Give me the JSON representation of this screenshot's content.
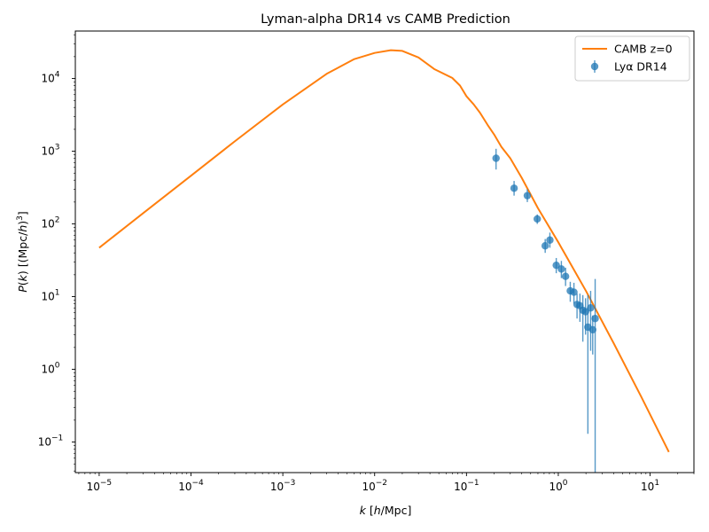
{
  "chart_data": {
    "type": "scatter",
    "title": "Lyman-alpha DR14 vs CAMB Prediction",
    "xlabel": "k [h/Mpc]",
    "ylabel": "P(k) [(Mpc/h)³]",
    "xscale": "log",
    "yscale": "log",
    "xlim": [
      5.5e-06,
      30
    ],
    "ylim": [
      0.038,
      45000
    ],
    "grid": false,
    "legend_position": "top-right",
    "x_ticks": [
      {
        "mant": "10",
        "exp": "−5",
        "value": 1e-05
      },
      {
        "mant": "10",
        "exp": "−4",
        "value": 0.0001
      },
      {
        "mant": "10",
        "exp": "−3",
        "value": 0.001
      },
      {
        "mant": "10",
        "exp": "−2",
        "value": 0.01
      },
      {
        "mant": "10",
        "exp": "−1",
        "value": 0.1
      },
      {
        "mant": "10",
        "exp": "0",
        "value": 1
      },
      {
        "mant": "10",
        "exp": "1",
        "value": 10
      }
    ],
    "y_ticks": [
      {
        "mant": "10",
        "exp": "−1",
        "value": 0.1
      },
      {
        "mant": "10",
        "exp": "0",
        "value": 1
      },
      {
        "mant": "10",
        "exp": "1",
        "value": 10
      },
      {
        "mant": "10",
        "exp": "2",
        "value": 100
      },
      {
        "mant": "10",
        "exp": "3",
        "value": 1000
      },
      {
        "mant": "10",
        "exp": "4",
        "value": 10000
      }
    ],
    "series": [
      {
        "name": "CAMB z=0",
        "kind": "line",
        "color": "#ff7f0e",
        "x": [
          1e-05,
          3e-05,
          0.0001,
          0.0003,
          0.001,
          0.003,
          0.006,
          0.01,
          0.015,
          0.02,
          0.03,
          0.045,
          0.07,
          0.085,
          0.1,
          0.12,
          0.14,
          0.17,
          0.2,
          0.24,
          0.3,
          0.4,
          0.6,
          1.0,
          2.0,
          4.0,
          8.0,
          16.0
        ],
        "y": [
          47,
          140,
          460,
          1370,
          4400,
          11600,
          18500,
          22500,
          24500,
          24000,
          19500,
          13400,
          10200,
          8000,
          5700,
          4400,
          3400,
          2300,
          1700,
          1150,
          800,
          430,
          165,
          56,
          12,
          2.3,
          0.42,
          0.073
        ]
      },
      {
        "name": "Lyα DR14",
        "kind": "errorbar",
        "color": "#1f77b4",
        "points": [
          {
            "x": 0.21,
            "y": 800,
            "ylo": 560,
            "yhi": 1080
          },
          {
            "x": 0.33,
            "y": 310,
            "ylo": 245,
            "yhi": 390
          },
          {
            "x": 0.46,
            "y": 245,
            "ylo": 200,
            "yhi": 300
          },
          {
            "x": 0.59,
            "y": 117,
            "ylo": 100,
            "yhi": 135
          },
          {
            "x": 0.72,
            "y": 50,
            "ylo": 40,
            "yhi": 62
          },
          {
            "x": 0.81,
            "y": 60,
            "ylo": 47,
            "yhi": 76
          },
          {
            "x": 0.95,
            "y": 27,
            "ylo": 21,
            "yhi": 34
          },
          {
            "x": 1.08,
            "y": 24,
            "ylo": 18,
            "yhi": 31
          },
          {
            "x": 1.2,
            "y": 19,
            "ylo": 14,
            "yhi": 25
          },
          {
            "x": 1.35,
            "y": 12,
            "ylo": 8.5,
            "yhi": 16
          },
          {
            "x": 1.48,
            "y": 11.5,
            "ylo": 8,
            "yhi": 15.5
          },
          {
            "x": 1.6,
            "y": 7.8,
            "ylo": 5,
            "yhi": 11
          },
          {
            "x": 1.72,
            "y": 7.5,
            "ylo": 4.5,
            "yhi": 11
          },
          {
            "x": 1.85,
            "y": 6.5,
            "ylo": 2.4,
            "yhi": 10.5
          },
          {
            "x": 1.98,
            "y": 6.2,
            "ylo": 3,
            "yhi": 9.5
          },
          {
            "x": 2.1,
            "y": 3.8,
            "ylo": 0.13,
            "yhi": 10.5
          },
          {
            "x": 2.25,
            "y": 7.0,
            "ylo": 1.8,
            "yhi": 12
          },
          {
            "x": 2.37,
            "y": 3.5,
            "ylo": 1.6,
            "yhi": 5.5
          },
          {
            "x": 2.52,
            "y": 5.0,
            "ylo": 0.03,
            "yhi": 17.5
          }
        ]
      }
    ]
  }
}
